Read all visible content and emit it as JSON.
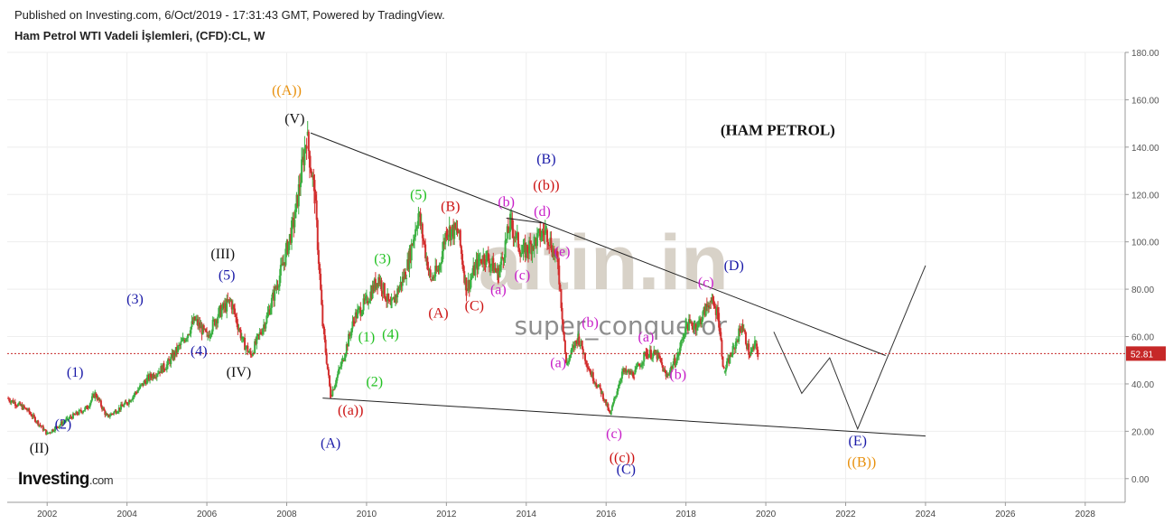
{
  "header": {
    "published": "Published on Investing.com, 6/Oct/2019 - 17:31:43 GMT, Powered by TradingView.",
    "symbol_title": "Ham Petrol WTI Vadeli İşlemleri, (CFD):CL, W"
  },
  "branding": {
    "logo_main": "Investing",
    "logo_suffix": ".com",
    "watermark_site": "altin.in",
    "watermark_user": "super_conqueror"
  },
  "colors": {
    "up_candle": "#3cb043",
    "down_candle": "#d32f2f",
    "last_price_line": "#c62828",
    "trendline": "#222222",
    "grid": "#eeeeee"
  },
  "chart_data": {
    "type": "line",
    "title": "(HAM PETROL)",
    "xlim": [
      2001.0,
      2029.0
    ],
    "ylim": [
      -10,
      180
    ],
    "x_ticks": [
      "2002",
      "2004",
      "2006",
      "2008",
      "2010",
      "2012",
      "2014",
      "2016",
      "2018",
      "2020",
      "2022",
      "2024",
      "2026",
      "2028"
    ],
    "y_ticks": [
      "0.00",
      "20.00",
      "40.00",
      "60.00",
      "80.00",
      "100.00",
      "120.00",
      "140.00",
      "160.00",
      "180.00"
    ],
    "last_price": 52.81,
    "last_price_label": "52.81",
    "grid": true,
    "series": [
      {
        "points": [
          [
            2001.0,
            34
          ],
          [
            2001.5,
            29
          ],
          [
            2002.0,
            19
          ],
          [
            2002.5,
            25
          ],
          [
            2003.0,
            30
          ],
          [
            2003.2,
            36
          ],
          [
            2003.5,
            26
          ],
          [
            2004.0,
            32
          ],
          [
            2004.5,
            42
          ],
          [
            2005.0,
            48
          ],
          [
            2005.4,
            58
          ],
          [
            2005.7,
            67
          ],
          [
            2006.0,
            60
          ],
          [
            2006.3,
            70
          ],
          [
            2006.6,
            75
          ],
          [
            2006.9,
            58
          ],
          [
            2007.1,
            52
          ],
          [
            2007.5,
            68
          ],
          [
            2007.9,
            90
          ],
          [
            2008.2,
            110
          ],
          [
            2008.5,
            145
          ],
          [
            2008.7,
            120
          ],
          [
            2008.9,
            65
          ],
          [
            2009.1,
            35
          ],
          [
            2009.4,
            50
          ],
          [
            2009.7,
            68
          ],
          [
            2010.0,
            75
          ],
          [
            2010.3,
            85
          ],
          [
            2010.6,
            72
          ],
          [
            2011.0,
            88
          ],
          [
            2011.3,
            112
          ],
          [
            2011.6,
            84
          ],
          [
            2011.8,
            88
          ],
          [
            2012.0,
            105
          ],
          [
            2012.3,
            104
          ],
          [
            2012.5,
            80
          ],
          [
            2012.8,
            92
          ],
          [
            2013.0,
            94
          ],
          [
            2013.3,
            86
          ],
          [
            2013.6,
            108
          ],
          [
            2013.9,
            95
          ],
          [
            2014.2,
            100
          ],
          [
            2014.5,
            105
          ],
          [
            2014.8,
            90
          ],
          [
            2015.0,
            48
          ],
          [
            2015.3,
            60
          ],
          [
            2015.6,
            45
          ],
          [
            2015.9,
            36
          ],
          [
            2016.1,
            27
          ],
          [
            2016.4,
            45
          ],
          [
            2016.7,
            44
          ],
          [
            2017.0,
            53
          ],
          [
            2017.3,
            52
          ],
          [
            2017.5,
            43
          ],
          [
            2017.8,
            52
          ],
          [
            2018.0,
            65
          ],
          [
            2018.3,
            65
          ],
          [
            2018.6,
            75
          ],
          [
            2018.8,
            70
          ],
          [
            2018.95,
            45
          ],
          [
            2019.2,
            55
          ],
          [
            2019.4,
            65
          ],
          [
            2019.6,
            52
          ],
          [
            2019.75,
            57
          ],
          [
            2019.8,
            52.81
          ]
        ]
      }
    ],
    "trendlines": [
      {
        "from": [
          2008.6,
          146
        ],
        "to": [
          2023.0,
          52
        ]
      },
      {
        "from": [
          2008.9,
          34
        ],
        "to": [
          2024.0,
          18
        ]
      },
      {
        "from": [
          2013.5,
          110
        ],
        "to": [
          2014.4,
          108
        ]
      }
    ],
    "projection": [
      [
        2020.2,
        62
      ],
      [
        2020.9,
        36
      ],
      [
        2021.6,
        51
      ],
      [
        2022.3,
        21
      ],
      [
        2024.0,
        90
      ]
    ],
    "annotations": [
      {
        "text": "((A))",
        "x": 2008.0,
        "y": 162,
        "color": "#e8900c"
      },
      {
        "text": "(V)",
        "x": 2008.2,
        "y": 150,
        "color": "#111111"
      },
      {
        "text": "(III)",
        "x": 2006.4,
        "y": 93,
        "color": "#111111"
      },
      {
        "text": "(5)",
        "x": 2006.5,
        "y": 84,
        "color": "#1a1aa8"
      },
      {
        "text": "(3)",
        "x": 2004.2,
        "y": 74,
        "color": "#1a1aa8"
      },
      {
        "text": "(4)",
        "x": 2005.8,
        "y": 52,
        "color": "#1a1aa8"
      },
      {
        "text": "(IV)",
        "x": 2006.8,
        "y": 43,
        "color": "#111111"
      },
      {
        "text": "(1)",
        "x": 2002.7,
        "y": 43,
        "color": "#1a1aa8"
      },
      {
        "text": "(2)",
        "x": 2002.4,
        "y": 21,
        "color": "#1a1aa8"
      },
      {
        "text": "(II)",
        "x": 2001.8,
        "y": 11,
        "color": "#111111"
      },
      {
        "text": "(1)",
        "x": 2010.0,
        "y": 58,
        "color": "#22c122"
      },
      {
        "text": "(2)",
        "x": 2010.2,
        "y": 39,
        "color": "#22c122"
      },
      {
        "text": "((a))",
        "x": 2009.6,
        "y": 27,
        "color": "#cc1111"
      },
      {
        "text": "(A)",
        "x": 2009.1,
        "y": 13,
        "color": "#1a1aa8"
      },
      {
        "text": "(3)",
        "x": 2010.4,
        "y": 91,
        "color": "#22c122"
      },
      {
        "text": "(4)",
        "x": 2010.6,
        "y": 59,
        "color": "#22c122"
      },
      {
        "text": "(5)",
        "x": 2011.3,
        "y": 118,
        "color": "#22c122"
      },
      {
        "text": "(B)",
        "x": 2012.1,
        "y": 113,
        "color": "#cc1111"
      },
      {
        "text": "(A)",
        "x": 2011.8,
        "y": 68,
        "color": "#cc1111"
      },
      {
        "text": "(C)",
        "x": 2012.7,
        "y": 71,
        "color": "#cc1111"
      },
      {
        "text": "(a)",
        "x": 2013.3,
        "y": 78,
        "color": "#c81ec8"
      },
      {
        "text": "(b)",
        "x": 2013.5,
        "y": 115,
        "color": "#c81ec8"
      },
      {
        "text": "(c)",
        "x": 2013.9,
        "y": 84,
        "color": "#c81ec8"
      },
      {
        "text": "(d)",
        "x": 2014.4,
        "y": 111,
        "color": "#c81ec8"
      },
      {
        "text": "(e)",
        "x": 2014.9,
        "y": 94,
        "color": "#c81ec8"
      },
      {
        "text": "(B)",
        "x": 2014.5,
        "y": 133,
        "color": "#1a1aa8"
      },
      {
        "text": "((b))",
        "x": 2014.5,
        "y": 122,
        "color": "#cc1111"
      },
      {
        "text": "(a)",
        "x": 2014.8,
        "y": 47,
        "color": "#c81ec8"
      },
      {
        "text": "(b)",
        "x": 2015.6,
        "y": 64,
        "color": "#c81ec8"
      },
      {
        "text": "(c)",
        "x": 2016.2,
        "y": 17,
        "color": "#c81ec8"
      },
      {
        "text": "((c))",
        "x": 2016.4,
        "y": 7,
        "color": "#cc1111"
      },
      {
        "text": "(C)",
        "x": 2016.5,
        "y": 2,
        "color": "#1a1aa8"
      },
      {
        "text": "(a)",
        "x": 2017.0,
        "y": 58,
        "color": "#c81ec8"
      },
      {
        "text": "(b)",
        "x": 2017.8,
        "y": 42,
        "color": "#c81ec8"
      },
      {
        "text": "(c)",
        "x": 2018.5,
        "y": 81,
        "color": "#c81ec8"
      },
      {
        "text": "(D)",
        "x": 2019.2,
        "y": 88,
        "color": "#1a1aa8"
      },
      {
        "text": "(E)",
        "x": 2022.3,
        "y": 14,
        "color": "#1a1aa8"
      },
      {
        "text": "((B))",
        "x": 2022.4,
        "y": 5,
        "color": "#e8900c"
      },
      {
        "text": "(HAM PETROL)",
        "x": 2020.3,
        "y": 145,
        "color": "#111111",
        "bold": true,
        "serif": true
      }
    ]
  }
}
